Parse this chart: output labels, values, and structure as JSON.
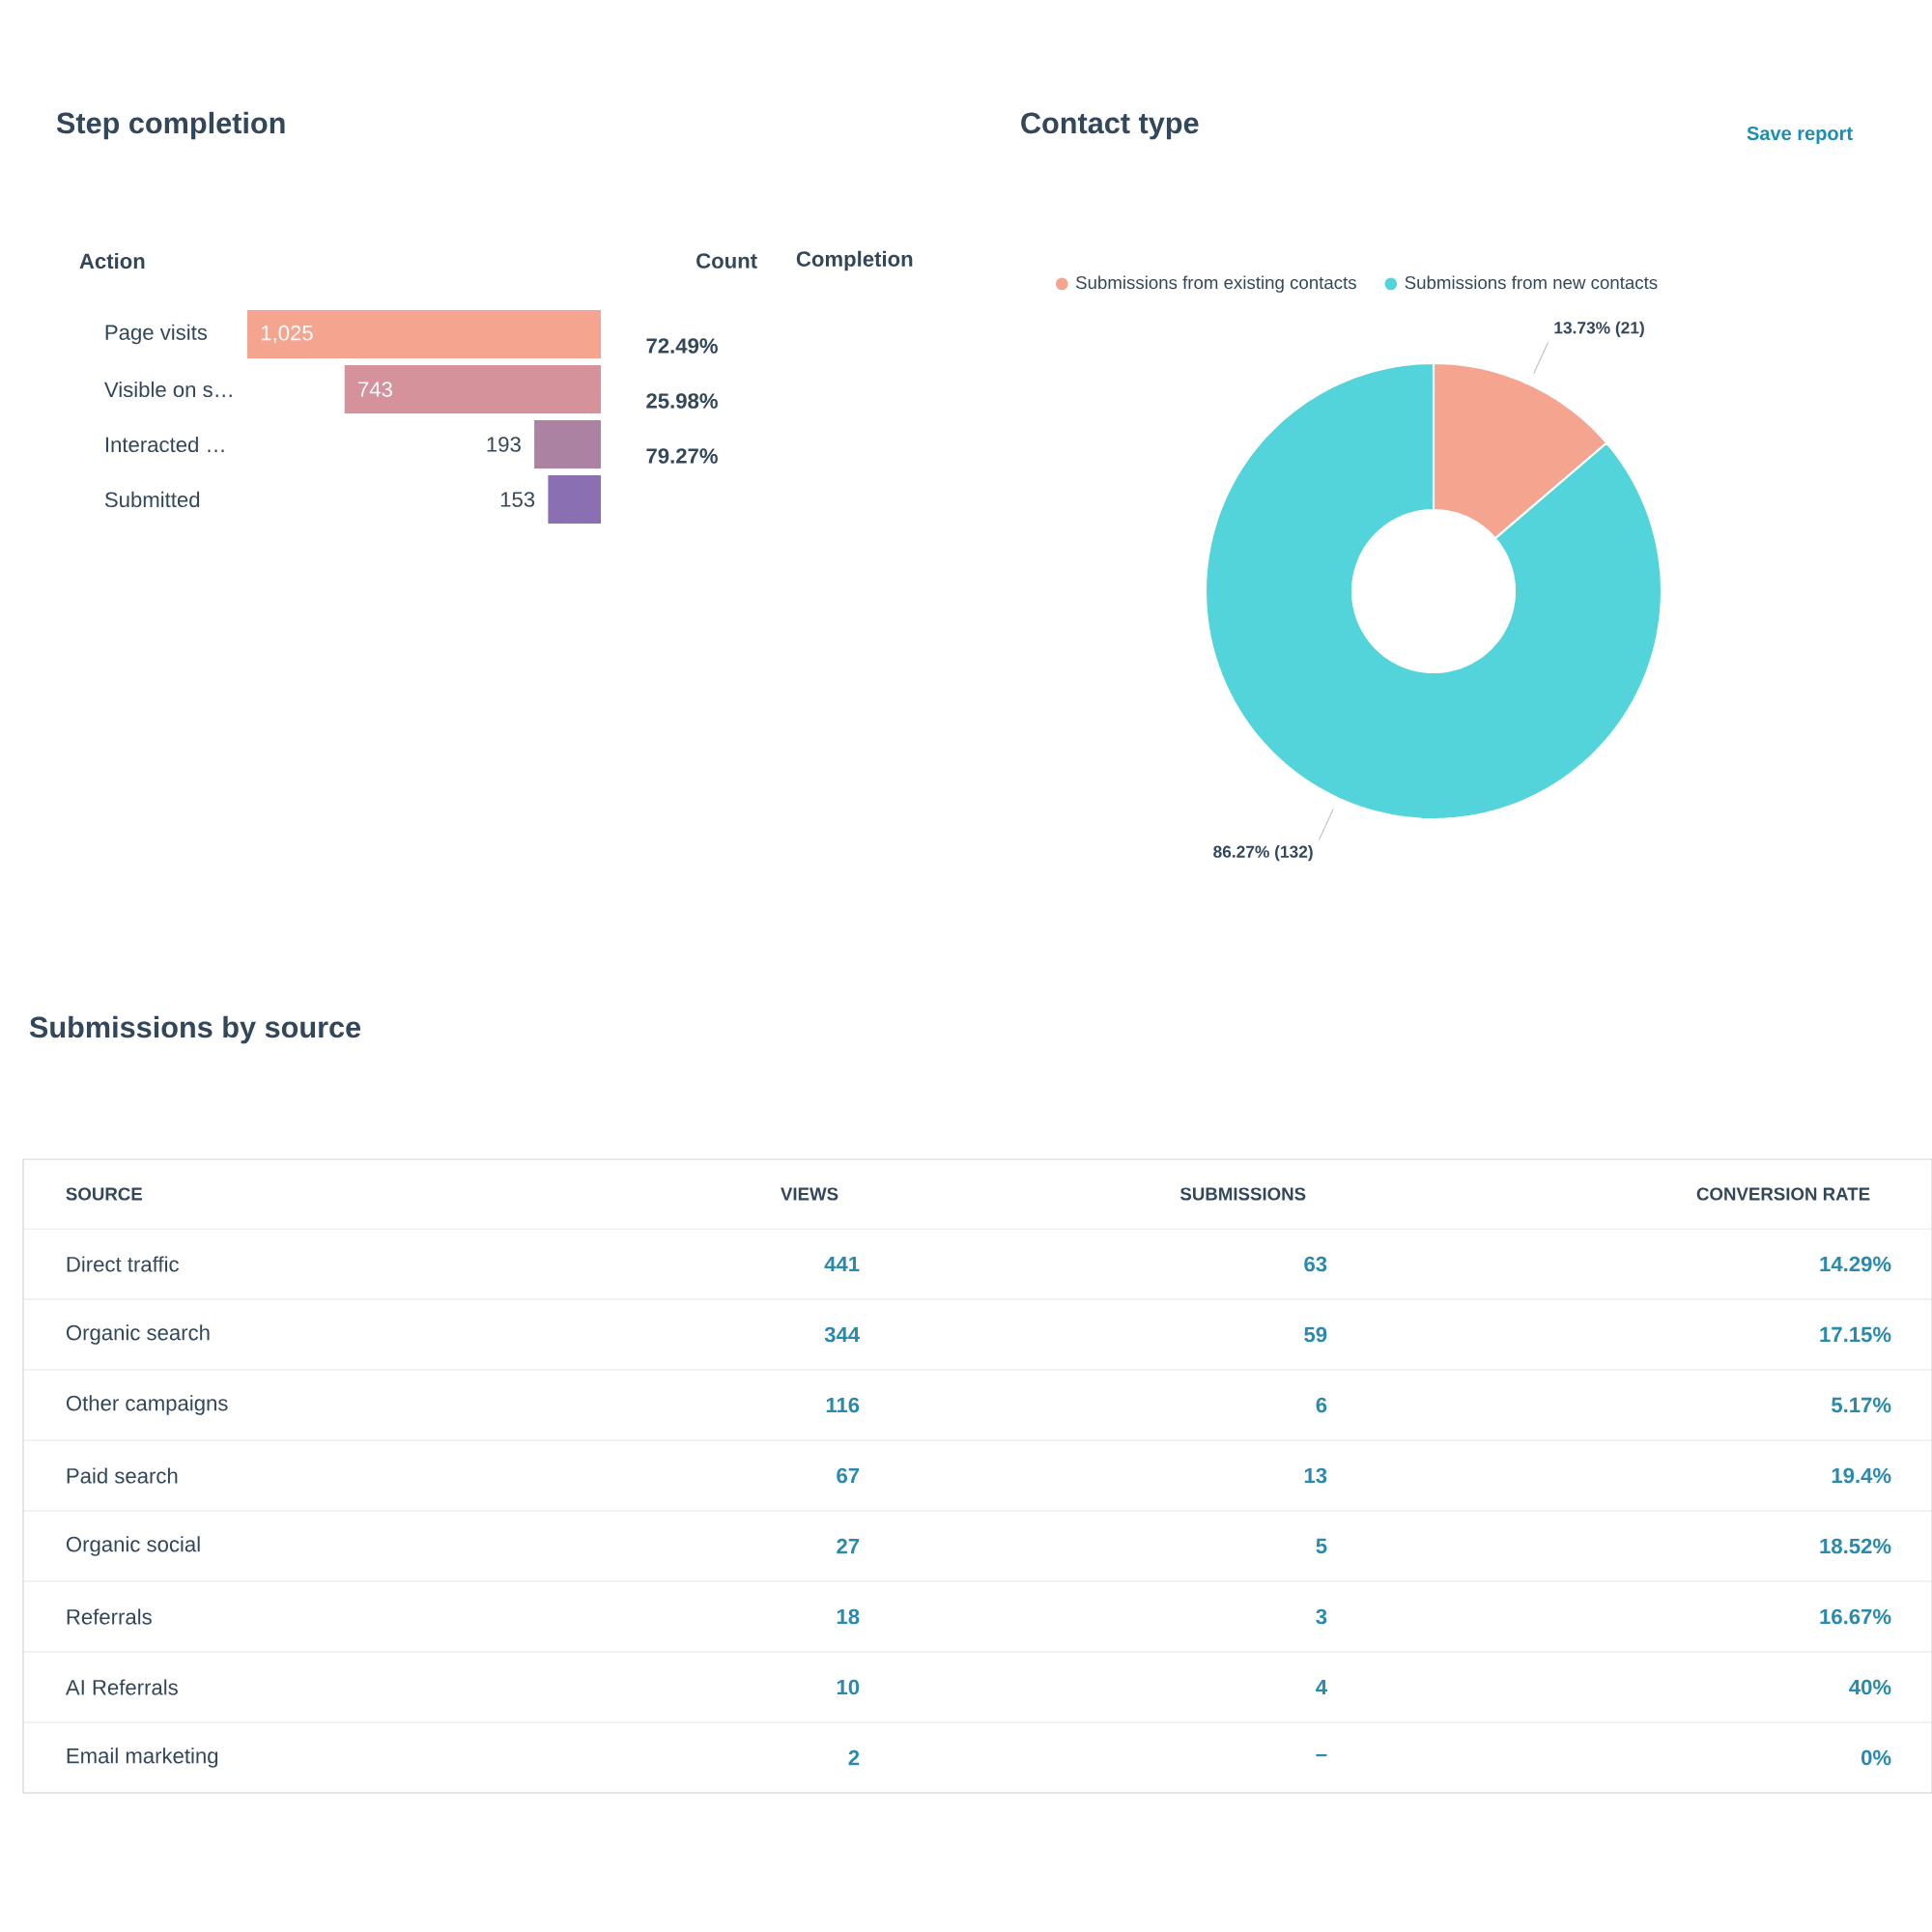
{
  "chart_data": [
    {
      "type": "bar",
      "title": "Step completion",
      "orientation": "horizontal",
      "categories": [
        "Page visits",
        "Visible on s…",
        "Interacted …",
        "Submitted"
      ],
      "values": [
        1025,
        743,
        193,
        153
      ],
      "colors": [
        "#f5a48f",
        "#d5929a",
        "#ac82a3",
        "#8a70b2"
      ],
      "value_labels": [
        "1,025",
        "743",
        "193",
        "153"
      ],
      "annotations": [
        "Action",
        "Count",
        "Completion",
        "72.49%",
        "25.98%",
        "79.27%"
      ]
    },
    {
      "type": "donut",
      "title": "Contact type",
      "categories": [
        "Submissions from existing contacts",
        "Submissions from new contacts"
      ],
      "values": [
        13.73,
        86.27
      ],
      "colors": [
        "#f5a48f",
        "#53d4da"
      ],
      "value_labels": [
        "13.73% (21)",
        "86.27% (132)"
      ],
      "legend": "top",
      "annotations": [
        "Save report"
      ]
    },
    {
      "type": "other",
      "title": "Submissions by source",
      "ylabel": "SOURCE",
      "categories": [
        "VIEWS",
        "SUBMISSIONS",
        "CONVERSION RATE"
      ],
      "y_categories": [
        "Direct traffic",
        "Organic search",
        "Other campaigns",
        "Paid search",
        "Organic social",
        "Referrals",
        "AI Referrals",
        "Email marketing"
      ],
      "cell_labels": [
        [
          "441",
          "63",
          "14.29%"
        ],
        [
          "344",
          "59",
          "17.15%"
        ],
        [
          "116",
          "6",
          "5.17%"
        ],
        [
          "67",
          "13",
          "19.4%"
        ],
        [
          "27",
          "5",
          "18.52%"
        ],
        [
          "18",
          "3",
          "16.67%"
        ],
        [
          "10",
          "4",
          "40%"
        ],
        [
          "2",
          "–",
          "0%"
        ]
      ]
    }
  ]
}
